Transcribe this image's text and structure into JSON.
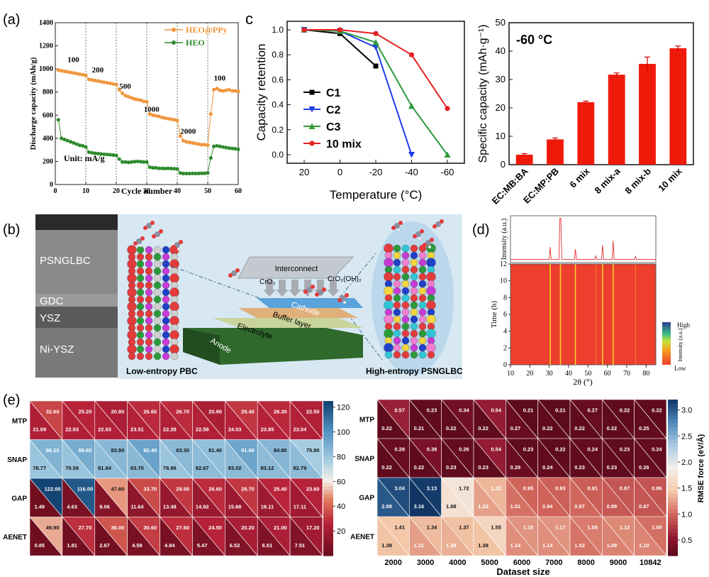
{
  "panel_labels": {
    "a": "(a)",
    "b": "(b)",
    "c": "c",
    "d": "(d)",
    "e": "(e)"
  },
  "chart_data": [
    {
      "id": "a",
      "type": "line",
      "xlabel": "Cycle number",
      "ylabel": "Discharge capacity (mAh/g)",
      "xlim": [
        0,
        60
      ],
      "ylim": [
        0,
        1400
      ],
      "xticks": [
        0,
        10,
        20,
        30,
        40,
        50,
        60
      ],
      "yticks": [
        0,
        200,
        400,
        600,
        800,
        1000,
        1200,
        1400
      ],
      "unit_note": "Unit: mA/g",
      "rate_labels": [
        {
          "text": "100",
          "x": 4,
          "y": 1060
        },
        {
          "text": "200",
          "x": 12,
          "y": 970
        },
        {
          "text": "500",
          "x": 21,
          "y": 830
        },
        {
          "text": "1000",
          "x": 29,
          "y": 630
        },
        {
          "text": "2000",
          "x": 41,
          "y": 440
        },
        {
          "text": "100",
          "x": 52,
          "y": 900
        }
      ],
      "legend_position": "top-right",
      "series": [
        {
          "name": "HEO@PPy",
          "color": "#f0963c",
          "marker": "circle",
          "x": [
            1,
            2,
            3,
            4,
            5,
            6,
            7,
            8,
            9,
            10,
            11,
            12,
            13,
            14,
            15,
            16,
            17,
            18,
            19,
            20,
            21,
            22,
            23,
            24,
            25,
            26,
            27,
            28,
            29,
            30,
            31,
            32,
            33,
            34,
            35,
            36,
            37,
            38,
            39,
            40,
            41,
            42,
            43,
            44,
            45,
            46,
            47,
            48,
            49,
            50,
            51,
            52,
            53,
            54,
            55,
            56,
            57,
            58,
            59,
            60
          ],
          "y": [
            990,
            985,
            980,
            975,
            970,
            965,
            960,
            955,
            950,
            945,
            910,
            905,
            900,
            895,
            890,
            885,
            880,
            875,
            870,
            865,
            820,
            790,
            770,
            760,
            750,
            740,
            735,
            730,
            720,
            715,
            610,
            600,
            595,
            590,
            580,
            575,
            570,
            565,
            560,
            555,
            420,
            380,
            370,
            365,
            360,
            355,
            350,
            345,
            345,
            340,
            610,
            820,
            830,
            815,
            810,
            815,
            820,
            810,
            810,
            805
          ]
        },
        {
          "name": "HEO",
          "color": "#2e8b2e",
          "marker": "circle",
          "x": [
            1,
            2,
            3,
            4,
            5,
            6,
            7,
            8,
            9,
            10,
            11,
            12,
            13,
            14,
            15,
            16,
            17,
            18,
            19,
            20,
            21,
            22,
            23,
            24,
            25,
            26,
            27,
            28,
            29,
            30,
            31,
            32,
            33,
            34,
            35,
            36,
            37,
            38,
            39,
            40,
            41,
            42,
            43,
            44,
            45,
            46,
            47,
            48,
            49,
            50,
            51,
            52,
            53,
            54,
            55,
            56,
            57,
            58,
            59,
            60
          ],
          "y": [
            560,
            400,
            390,
            380,
            370,
            360,
            350,
            340,
            335,
            325,
            280,
            275,
            270,
            268,
            265,
            262,
            260,
            258,
            255,
            252,
            220,
            195,
            195,
            192,
            195,
            198,
            200,
            198,
            195,
            195,
            150,
            145,
            145,
            140,
            140,
            138,
            140,
            138,
            137,
            135,
            100,
            95,
            95,
            95,
            96,
            95,
            96,
            97,
            97,
            100,
            230,
            330,
            335,
            330,
            325,
            320,
            315,
            312,
            310,
            305
          ]
        }
      ]
    },
    {
      "id": "c-left",
      "type": "line",
      "xlabel": "Temperature (°C)",
      "ylabel": "Capacity retention",
      "categories": [
        "20",
        "0",
        "-20",
        "-40",
        "-60"
      ],
      "ylim": [
        0,
        1.0
      ],
      "yticks": [
        "0.0",
        "0.2",
        "0.4",
        "0.6",
        "0.8",
        "1.0"
      ],
      "legend_position": "left",
      "series": [
        {
          "name": "C1",
          "color": "#000000",
          "marker": "square",
          "values": [
            1.0,
            0.97,
            0.71,
            null,
            null
          ]
        },
        {
          "name": "C2",
          "color": "#1f3de8",
          "marker": "triangle-down",
          "values": [
            1.0,
            0.99,
            0.86,
            0.0,
            null
          ]
        },
        {
          "name": "C3",
          "color": "#2e9a3c",
          "marker": "triangle-up",
          "values": [
            1.0,
            0.99,
            0.9,
            0.39,
            0.0
          ]
        },
        {
          "name": "10 mix",
          "color": "#e32121",
          "marker": "circle",
          "values": [
            1.0,
            1.0,
            0.97,
            0.8,
            0.37
          ]
        }
      ]
    },
    {
      "id": "c-right",
      "type": "bar",
      "annotation": "-60 °C",
      "ylabel": "Specific capacity (mAh·g⁻¹)",
      "ylim": [
        0,
        50
      ],
      "yticks": [
        0,
        10,
        20,
        30,
        40,
        50
      ],
      "categories": [
        "EC:MB:BA",
        "EC:MP:PB",
        "6 mix",
        "8 mix-a",
        "8 mix-b",
        "10 mix"
      ],
      "values": [
        3.5,
        8.9,
        22.0,
        31.7,
        35.5,
        41.0
      ],
      "errors": [
        0.4,
        0.5,
        0.4,
        0.6,
        2.4,
        0.8
      ],
      "color": "#f01a0a"
    },
    {
      "id": "d",
      "type": "heatmap",
      "xlabel": "2θ (°)",
      "ylabel_time": "Time (h)",
      "ylabel_intensity": "Intensity (a.u.)",
      "xlim": [
        10,
        85
      ],
      "xticks": [
        10,
        20,
        30,
        40,
        50,
        60,
        70,
        80
      ],
      "ylim": [
        0,
        12
      ],
      "yticks": [
        0,
        2,
        4,
        6,
        8,
        10,
        12
      ],
      "colorbar_labels": {
        "high": "High",
        "low": "Low",
        "title": "Intensity (a.u.)"
      },
      "peaks": [
        {
          "x": 30.5,
          "h": 0.3
        },
        {
          "x": 35.8,
          "h": 1.0
        },
        {
          "x": 43.5,
          "h": 0.25
        },
        {
          "x": 54.0,
          "h": 0.08
        },
        {
          "x": 57.5,
          "h": 0.35
        },
        {
          "x": 63.0,
          "h": 0.45
        },
        {
          "x": 74.5,
          "h": 0.07
        }
      ]
    },
    {
      "id": "e-left",
      "type": "heatmap",
      "rows": [
        "MTP",
        "SNAP",
        "GAP",
        "AENET"
      ],
      "upper": [
        [
          32.6,
          25.2,
          20.8,
          26.6,
          26.7,
          20.9,
          29.4,
          26.3,
          22.5
        ],
        [
          86.1,
          88.6,
          83.9,
          92.4,
          83.3,
          81.4,
          91.6,
          84.8,
          75.8
        ],
        [
          122.0,
          116.0,
          47.6,
          33.7,
          29.5,
          26.6,
          29.7,
          25.4,
          23.6
        ],
        [
          49.9,
          27.7,
          36.0,
          30.6,
          27.6,
          24.5,
          20.2,
          21.0,
          17.2
        ]
      ],
      "lower": [
        [
          21.89,
          22.93,
          22.93,
          23.51,
          22.28,
          22.58,
          24.03,
          23.85,
          23.04
        ],
        [
          78.77,
          79.58,
          81.84,
          83.7,
          78.86,
          82.67,
          83.02,
          83.12,
          82.79
        ],
        [
          1.49,
          4.63,
          9.06,
          11.64,
          13.48,
          14.92,
          15.68,
          16.11,
          17.11
        ],
        [
          0.85,
          1.81,
          2.67,
          4.59,
          4.84,
          5.47,
          6.52,
          6.51,
          7.51
        ]
      ],
      "colorbar_ticks": [
        20,
        40,
        60,
        80,
        100,
        120
      ],
      "colorbar_range": [
        0,
        125
      ]
    },
    {
      "id": "e-right",
      "type": "heatmap",
      "rows": [
        "MTP",
        "SNAP",
        "GAP",
        "AENET"
      ],
      "columns": [
        "2000",
        "3000",
        "4000",
        "5000",
        "6000",
        "7000",
        "8000",
        "9000",
        "10842"
      ],
      "xlabel": "Dataset size",
      "colorbar_title": "RMSE force (eV/Å)",
      "upper": [
        [
          0.57,
          0.23,
          0.34,
          0.54,
          0.21,
          0.21,
          0.27,
          0.22,
          0.22
        ],
        [
          0.28,
          0.38,
          0.26,
          0.54,
          0.23,
          0.22,
          0.24,
          0.23,
          0.24
        ],
        [
          3.04,
          3.13,
          1.72,
          1.32,
          0.95,
          0.93,
          0.91,
          0.87,
          0.86
        ],
        [
          1.41,
          1.34,
          1.37,
          1.55,
          1.16,
          1.17,
          1.06,
          1.12,
          1.0
        ]
      ],
      "lower": [
        [
          0.22,
          0.21,
          0.22,
          0.22,
          0.27,
          0.22,
          0.22,
          0.22,
          0.25
        ],
        [
          0.22,
          0.22,
          0.23,
          0.23,
          0.29,
          0.24,
          0.23,
          0.23,
          0.26
        ],
        [
          2.98,
          3.16,
          1.68,
          1.22,
          1.01,
          0.94,
          0.97,
          0.89,
          0.87
        ],
        [
          1.38,
          1.21,
          1.29,
          1.38,
          1.14,
          1.14,
          1.02,
          1.09,
          1.1
        ]
      ],
      "colorbar_ticks": [
        0.5,
        1.0,
        1.5,
        2.0,
        2.5,
        3.0
      ],
      "colorbar_range": [
        0.2,
        3.2
      ]
    }
  ],
  "diagram_b": {
    "sem_layers": [
      "PSNGLBC",
      "GDC",
      "YSZ",
      "Ni-YSZ"
    ],
    "left_caption": "Low-entropy PBC",
    "right_caption": "High-entropy PSNGLBC",
    "stack_labels": [
      "Interconnect",
      "Cathode",
      "Buffer layer",
      "Electrolyte",
      "Anode"
    ],
    "species": [
      "CrO₃",
      "CrO₂(OH)₂"
    ],
    "colors": {
      "background": "#d7e8f3",
      "interconnect": "#c4c9d0",
      "cathode": "#5aa3dc",
      "buffer": "#e0b07a",
      "electrolyte": "#c8d49a",
      "anode": "#2f6a2c"
    }
  }
}
